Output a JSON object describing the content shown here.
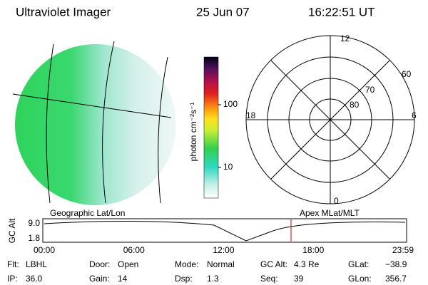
{
  "header": {
    "title": "Ultraviolet Imager",
    "date": "25 Jun 07",
    "time": "16:22:51 UT"
  },
  "colorbar": {
    "label": "photon cm⁻²s⁻¹",
    "ticks": [
      "100",
      "10"
    ]
  },
  "polar": {
    "clock": [
      "12",
      "18",
      "6",
      "0"
    ],
    "lat": [
      "60",
      "70",
      "80"
    ]
  },
  "timeline": {
    "left_label": "Geographic Lat/Lon",
    "right_label": "Apex MLat/MLT",
    "y_axis": "GC Alt",
    "y_ticks": [
      "9.0",
      "1.8"
    ],
    "x_ticks": [
      "00:00",
      "06:00",
      "12:00",
      "18:00",
      "23:59"
    ]
  },
  "info": {
    "rows": [
      [
        [
          "Flt:",
          "LBHL"
        ],
        [
          "Door:",
          "Open"
        ],
        [
          "Mode:",
          "Normal"
        ],
        [
          "GC Alt:",
          "4.3 Re"
        ],
        [
          "GLat:",
          "−38.9"
        ]
      ],
      [
        [
          "IP:",
          "36.0"
        ],
        [
          "Gain:",
          "14"
        ],
        [
          "Dsp:",
          "1.3"
        ],
        [
          "Seq:",
          "39"
        ],
        [
          "GLon:",
          "356.7"
        ]
      ]
    ]
  }
}
